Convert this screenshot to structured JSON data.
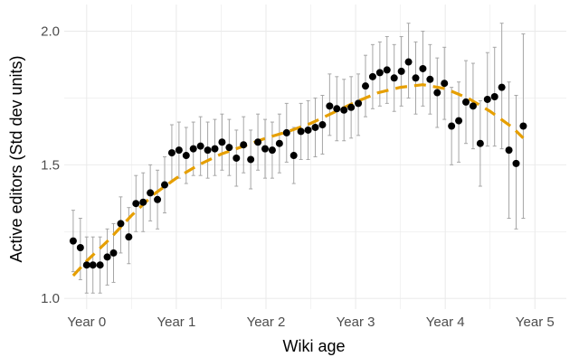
{
  "colors": {
    "trend": "#E69F00",
    "points": "#000000",
    "errorbars": "#a6a6a6",
    "grid": "#ebebeb"
  },
  "chart_data": {
    "type": "scatter",
    "xlabel": "Wiki age",
    "ylabel": "Active editors (Std dev units)",
    "xlim": [
      -0.25,
      5.35
    ],
    "ylim": [
      0.96,
      2.1
    ],
    "grid": true,
    "x_ticks": [
      {
        "value": 0,
        "label": "Year 0"
      },
      {
        "value": 1,
        "label": "Year 1"
      },
      {
        "value": 2,
        "label": "Year 2"
      },
      {
        "value": 3,
        "label": "Year 3"
      },
      {
        "value": 4,
        "label": "Year 4"
      },
      {
        "value": 5,
        "label": "Year 5"
      }
    ],
    "y_ticks": [
      {
        "value": 1.0,
        "label": "1.0"
      },
      {
        "value": 1.5,
        "label": "1.5"
      },
      {
        "value": 2.0,
        "label": "2.0"
      }
    ],
    "points": [
      {
        "x": -0.15,
        "y": 1.215,
        "lo": 1.1,
        "hi": 1.33
      },
      {
        "x": -0.07,
        "y": 1.19,
        "lo": 1.07,
        "hi": 1.3
      },
      {
        "x": 0.0,
        "y": 1.125,
        "lo": 1.02,
        "hi": 1.23
      },
      {
        "x": 0.07,
        "y": 1.125,
        "lo": 1.02,
        "hi": 1.23
      },
      {
        "x": 0.15,
        "y": 1.125,
        "lo": 1.02,
        "hi": 1.23
      },
      {
        "x": 0.23,
        "y": 1.155,
        "lo": 1.05,
        "hi": 1.26
      },
      {
        "x": 0.3,
        "y": 1.17,
        "lo": 1.06,
        "hi": 1.28
      },
      {
        "x": 0.38,
        "y": 1.28,
        "lo": 1.17,
        "hi": 1.38
      },
      {
        "x": 0.47,
        "y": 1.23,
        "lo": 1.13,
        "hi": 1.34
      },
      {
        "x": 0.55,
        "y": 1.355,
        "lo": 1.25,
        "hi": 1.46
      },
      {
        "x": 0.63,
        "y": 1.36,
        "lo": 1.25,
        "hi": 1.47
      },
      {
        "x": 0.71,
        "y": 1.395,
        "lo": 1.29,
        "hi": 1.5
      },
      {
        "x": 0.79,
        "y": 1.37,
        "lo": 1.26,
        "hi": 1.48
      },
      {
        "x": 0.87,
        "y": 1.425,
        "lo": 1.32,
        "hi": 1.53
      },
      {
        "x": 0.95,
        "y": 1.545,
        "lo": 1.44,
        "hi": 1.65
      },
      {
        "x": 1.03,
        "y": 1.555,
        "lo": 1.45,
        "hi": 1.66
      },
      {
        "x": 1.11,
        "y": 1.535,
        "lo": 1.43,
        "hi": 1.64
      },
      {
        "x": 1.19,
        "y": 1.56,
        "lo": 1.46,
        "hi": 1.66
      },
      {
        "x": 1.27,
        "y": 1.57,
        "lo": 1.46,
        "hi": 1.68
      },
      {
        "x": 1.35,
        "y": 1.555,
        "lo": 1.45,
        "hi": 1.66
      },
      {
        "x": 1.43,
        "y": 1.56,
        "lo": 1.46,
        "hi": 1.67
      },
      {
        "x": 1.51,
        "y": 1.585,
        "lo": 1.48,
        "hi": 1.69
      },
      {
        "x": 1.59,
        "y": 1.565,
        "lo": 1.46,
        "hi": 1.67
      },
      {
        "x": 1.67,
        "y": 1.525,
        "lo": 1.42,
        "hi": 1.63
      },
      {
        "x": 1.75,
        "y": 1.575,
        "lo": 1.47,
        "hi": 1.68
      },
      {
        "x": 1.83,
        "y": 1.52,
        "lo": 1.41,
        "hi": 1.63
      },
      {
        "x": 1.91,
        "y": 1.585,
        "lo": 1.48,
        "hi": 1.69
      },
      {
        "x": 1.99,
        "y": 1.56,
        "lo": 1.45,
        "hi": 1.67
      },
      {
        "x": 2.07,
        "y": 1.555,
        "lo": 1.45,
        "hi": 1.66
      },
      {
        "x": 2.15,
        "y": 1.58,
        "lo": 1.47,
        "hi": 1.69
      },
      {
        "x": 2.23,
        "y": 1.62,
        "lo": 1.51,
        "hi": 1.73
      },
      {
        "x": 2.31,
        "y": 1.535,
        "lo": 1.43,
        "hi": 1.64
      },
      {
        "x": 2.39,
        "y": 1.625,
        "lo": 1.52,
        "hi": 1.73
      },
      {
        "x": 2.47,
        "y": 1.63,
        "lo": 1.52,
        "hi": 1.74
      },
      {
        "x": 2.55,
        "y": 1.64,
        "lo": 1.53,
        "hi": 1.75
      },
      {
        "x": 2.63,
        "y": 1.65,
        "lo": 1.54,
        "hi": 1.76
      },
      {
        "x": 2.71,
        "y": 1.72,
        "lo": 1.61,
        "hi": 1.84
      },
      {
        "x": 2.79,
        "y": 1.71,
        "lo": 1.59,
        "hi": 1.83
      },
      {
        "x": 2.87,
        "y": 1.705,
        "lo": 1.59,
        "hi": 1.82
      },
      {
        "x": 2.95,
        "y": 1.715,
        "lo": 1.6,
        "hi": 1.83
      },
      {
        "x": 3.03,
        "y": 1.73,
        "lo": 1.61,
        "hi": 1.84
      },
      {
        "x": 3.11,
        "y": 1.795,
        "lo": 1.68,
        "hi": 1.91
      },
      {
        "x": 3.19,
        "y": 1.83,
        "lo": 1.71,
        "hi": 1.95
      },
      {
        "x": 3.27,
        "y": 1.845,
        "lo": 1.72,
        "hi": 1.96
      },
      {
        "x": 3.35,
        "y": 1.855,
        "lo": 1.73,
        "hi": 1.98
      },
      {
        "x": 3.43,
        "y": 1.825,
        "lo": 1.7,
        "hi": 1.95
      },
      {
        "x": 3.51,
        "y": 1.85,
        "lo": 1.72,
        "hi": 1.98
      },
      {
        "x": 3.59,
        "y": 1.885,
        "lo": 1.75,
        "hi": 2.03
      },
      {
        "x": 3.67,
        "y": 1.825,
        "lo": 1.69,
        "hi": 1.96
      },
      {
        "x": 3.75,
        "y": 1.86,
        "lo": 1.72,
        "hi": 2.0
      },
      {
        "x": 3.83,
        "y": 1.82,
        "lo": 1.69,
        "hi": 1.95
      },
      {
        "x": 3.91,
        "y": 1.77,
        "lo": 1.64,
        "hi": 1.9
      },
      {
        "x": 3.99,
        "y": 1.805,
        "lo": 1.67,
        "hi": 1.94
      },
      {
        "x": 4.07,
        "y": 1.645,
        "lo": 1.5,
        "hi": 1.79
      },
      {
        "x": 4.15,
        "y": 1.665,
        "lo": 1.51,
        "hi": 1.81
      },
      {
        "x": 4.23,
        "y": 1.735,
        "lo": 1.58,
        "hi": 1.89
      },
      {
        "x": 4.31,
        "y": 1.72,
        "lo": 1.56,
        "hi": 1.88
      },
      {
        "x": 4.39,
        "y": 1.58,
        "lo": 1.42,
        "hi": 1.74
      },
      {
        "x": 4.47,
        "y": 1.745,
        "lo": 1.57,
        "hi": 1.92
      },
      {
        "x": 4.55,
        "y": 1.755,
        "lo": 1.57,
        "hi": 1.94
      },
      {
        "x": 4.63,
        "y": 1.79,
        "lo": 1.56,
        "hi": 2.03
      },
      {
        "x": 4.71,
        "y": 1.555,
        "lo": 1.3,
        "hi": 1.81
      },
      {
        "x": 4.79,
        "y": 1.505,
        "lo": 1.26,
        "hi": 1.76
      },
      {
        "x": 4.87,
        "y": 1.645,
        "lo": 1.3,
        "hi": 1.99
      }
    ],
    "trend": [
      {
        "x": -0.15,
        "y": 1.085
      },
      {
        "x": 0.0,
        "y": 1.14
      },
      {
        "x": 0.25,
        "y": 1.22
      },
      {
        "x": 0.5,
        "y": 1.31
      },
      {
        "x": 0.75,
        "y": 1.39
      },
      {
        "x": 1.0,
        "y": 1.45
      },
      {
        "x": 1.25,
        "y": 1.5
      },
      {
        "x": 1.5,
        "y": 1.54
      },
      {
        "x": 1.75,
        "y": 1.57
      },
      {
        "x": 2.0,
        "y": 1.6
      },
      {
        "x": 2.25,
        "y": 1.625
      },
      {
        "x": 2.5,
        "y": 1.655
      },
      {
        "x": 2.75,
        "y": 1.695
      },
      {
        "x": 3.0,
        "y": 1.735
      },
      {
        "x": 3.25,
        "y": 1.77
      },
      {
        "x": 3.5,
        "y": 1.79
      },
      {
        "x": 3.75,
        "y": 1.8
      },
      {
        "x": 4.0,
        "y": 1.785
      },
      {
        "x": 4.25,
        "y": 1.75
      },
      {
        "x": 4.5,
        "y": 1.7
      },
      {
        "x": 4.75,
        "y": 1.64
      },
      {
        "x": 4.87,
        "y": 1.6
      }
    ]
  }
}
